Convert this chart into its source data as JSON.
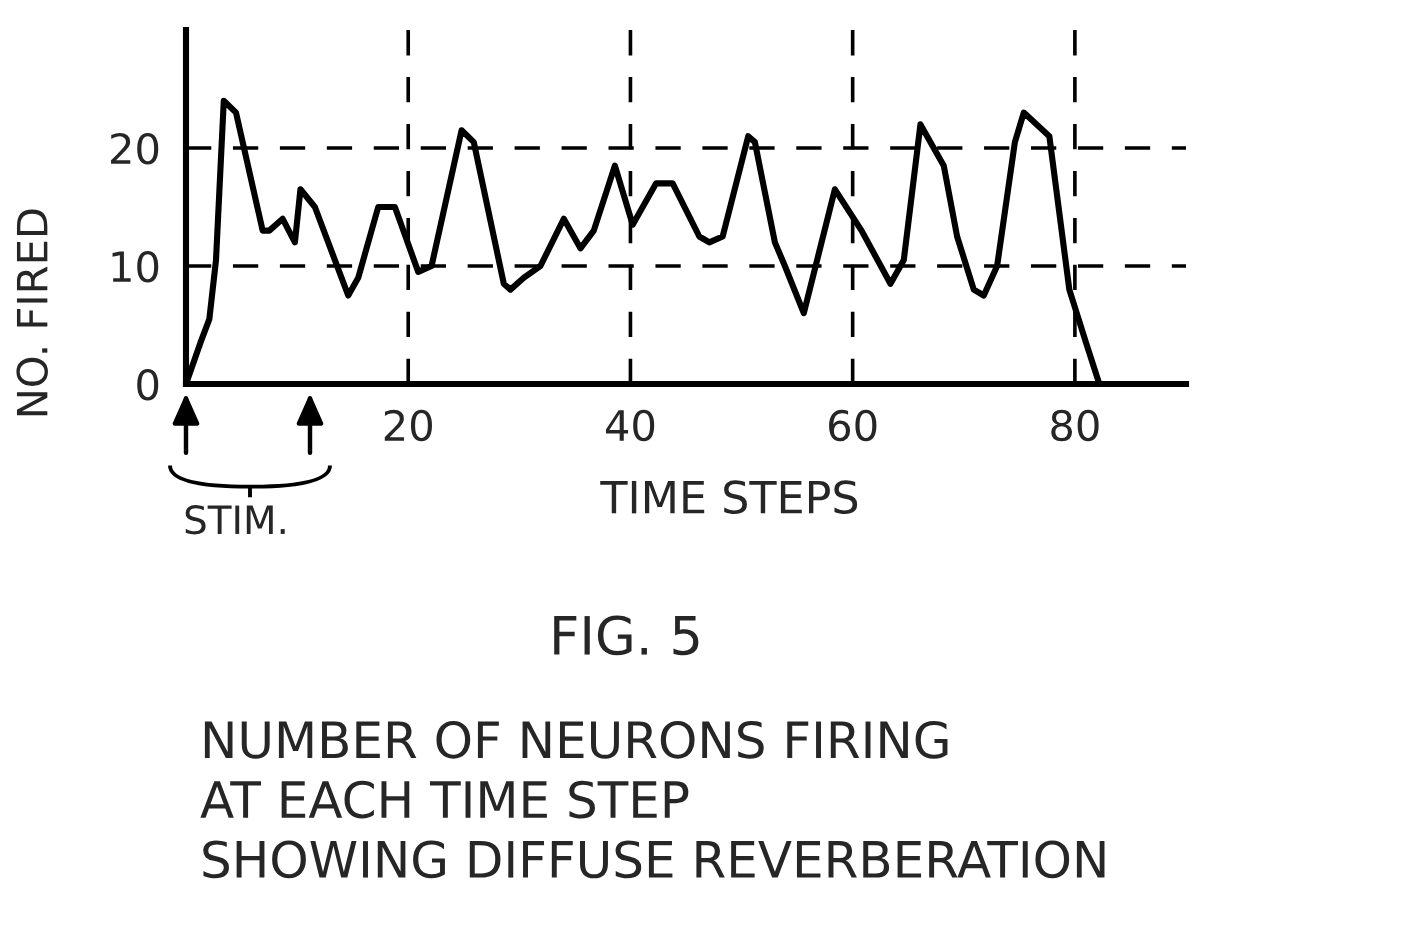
{
  "chart_data": {
    "type": "line",
    "title": "FIG. 5",
    "subtitle": "NUMBER OF NEURONS FIRING\nAT EACH TIME STEP\nSHOWING DIFFUSE REVERBERATION",
    "xlabel": "TIME STEPS",
    "ylabel": "NO. FIRED",
    "series": [
      {
        "color": "#000000",
        "x": [
          0,
          1.3,
          2.1,
          2.7,
          3.4,
          4.5,
          6.9,
          7.5,
          8.7,
          9.8,
          10.3,
          11.6,
          14.6,
          15.5,
          17.3,
          18.8,
          20.9,
          22.1,
          24.8,
          25.9,
          28.6,
          29.2,
          30.4,
          31.9,
          34.0,
          35.5,
          36.7,
          38.6,
          40.2,
          42.3,
          43.8,
          46.2,
          47.1,
          48.3,
          50.6,
          51.2,
          53.0,
          53.9,
          55.6,
          58.4,
          60.8,
          63.4,
          64.6,
          66.1,
          68.2,
          69.4,
          70.9,
          71.8,
          73.0,
          74.6,
          75.4,
          77.7,
          79.5,
          81.0,
          82.2
        ],
        "values": [
          0,
          3.5,
          5.5,
          10.5,
          24,
          23,
          13,
          13,
          14,
          12,
          16.5,
          15,
          7.5,
          9,
          15,
          15,
          9.5,
          10,
          21.5,
          20.5,
          8.5,
          8,
          9,
          10,
          14,
          11.5,
          13,
          18.5,
          13.5,
          17,
          17,
          12.5,
          12,
          12.5,
          21,
          20.5,
          12,
          10,
          6,
          16.5,
          13,
          8.5,
          10.5,
          22,
          18.5,
          12.5,
          8,
          7.5,
          10,
          20.5,
          23,
          21,
          8,
          3.5,
          0
        ]
      }
    ],
    "xlim": [
      0,
      90
    ],
    "ylim": [
      0,
      30
    ],
    "xticks": [
      20,
      40,
      60,
      80
    ],
    "yticks": [
      0,
      10,
      20
    ],
    "grid": true,
    "line_style": "solid",
    "annotations": [
      "STIM."
    ]
  }
}
